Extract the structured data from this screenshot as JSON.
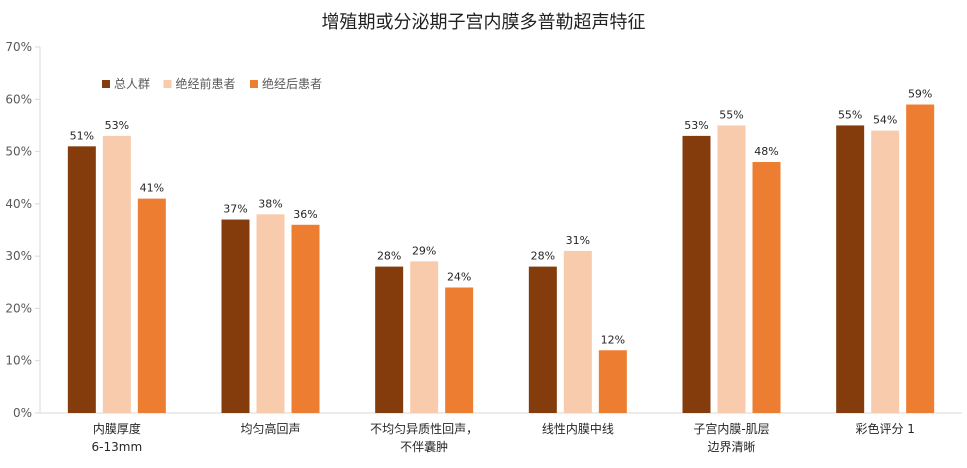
{
  "chart_data": {
    "type": "bar",
    "title": "增殖期或分泌期子宫内膜多普勒超声特征",
    "categories": [
      [
        "内膜厚度",
        "6-13mm"
      ],
      [
        "均匀高回声"
      ],
      [
        "不均匀异质性回声，",
        "不伴囊肿"
      ],
      [
        "线性内膜中线"
      ],
      [
        "子宫内膜-肌层",
        "边界清晰"
      ],
      [
        "彩色评分 1"
      ]
    ],
    "series": [
      {
        "name": "总人群",
        "color": "#843C0C",
        "values": [
          51,
          37,
          28,
          28,
          53,
          55
        ],
        "labels": [
          "51%",
          "37%",
          "28%",
          "28%",
          "53%",
          "55%"
        ]
      },
      {
        "name": "绝经前患者",
        "color": "#F8CBAD",
        "values": [
          53,
          38,
          29,
          31,
          55,
          54
        ],
        "labels": [
          "53%",
          "38%",
          "29%",
          "31%",
          "55%",
          "54%"
        ]
      },
      {
        "name": "绝经后患者",
        "color": "#ED7D31",
        "values": [
          41,
          36,
          24,
          12,
          48,
          59
        ],
        "labels": [
          "41%",
          "36%",
          "24%",
          "12%",
          "48%",
          "59%"
        ]
      }
    ],
    "ylim": [
      0,
      70
    ],
    "yticks": [
      "0%",
      "10%",
      "20%",
      "30%",
      "40%",
      "50%",
      "60%",
      "70%"
    ],
    "grid": false,
    "legend": "top-left"
  }
}
